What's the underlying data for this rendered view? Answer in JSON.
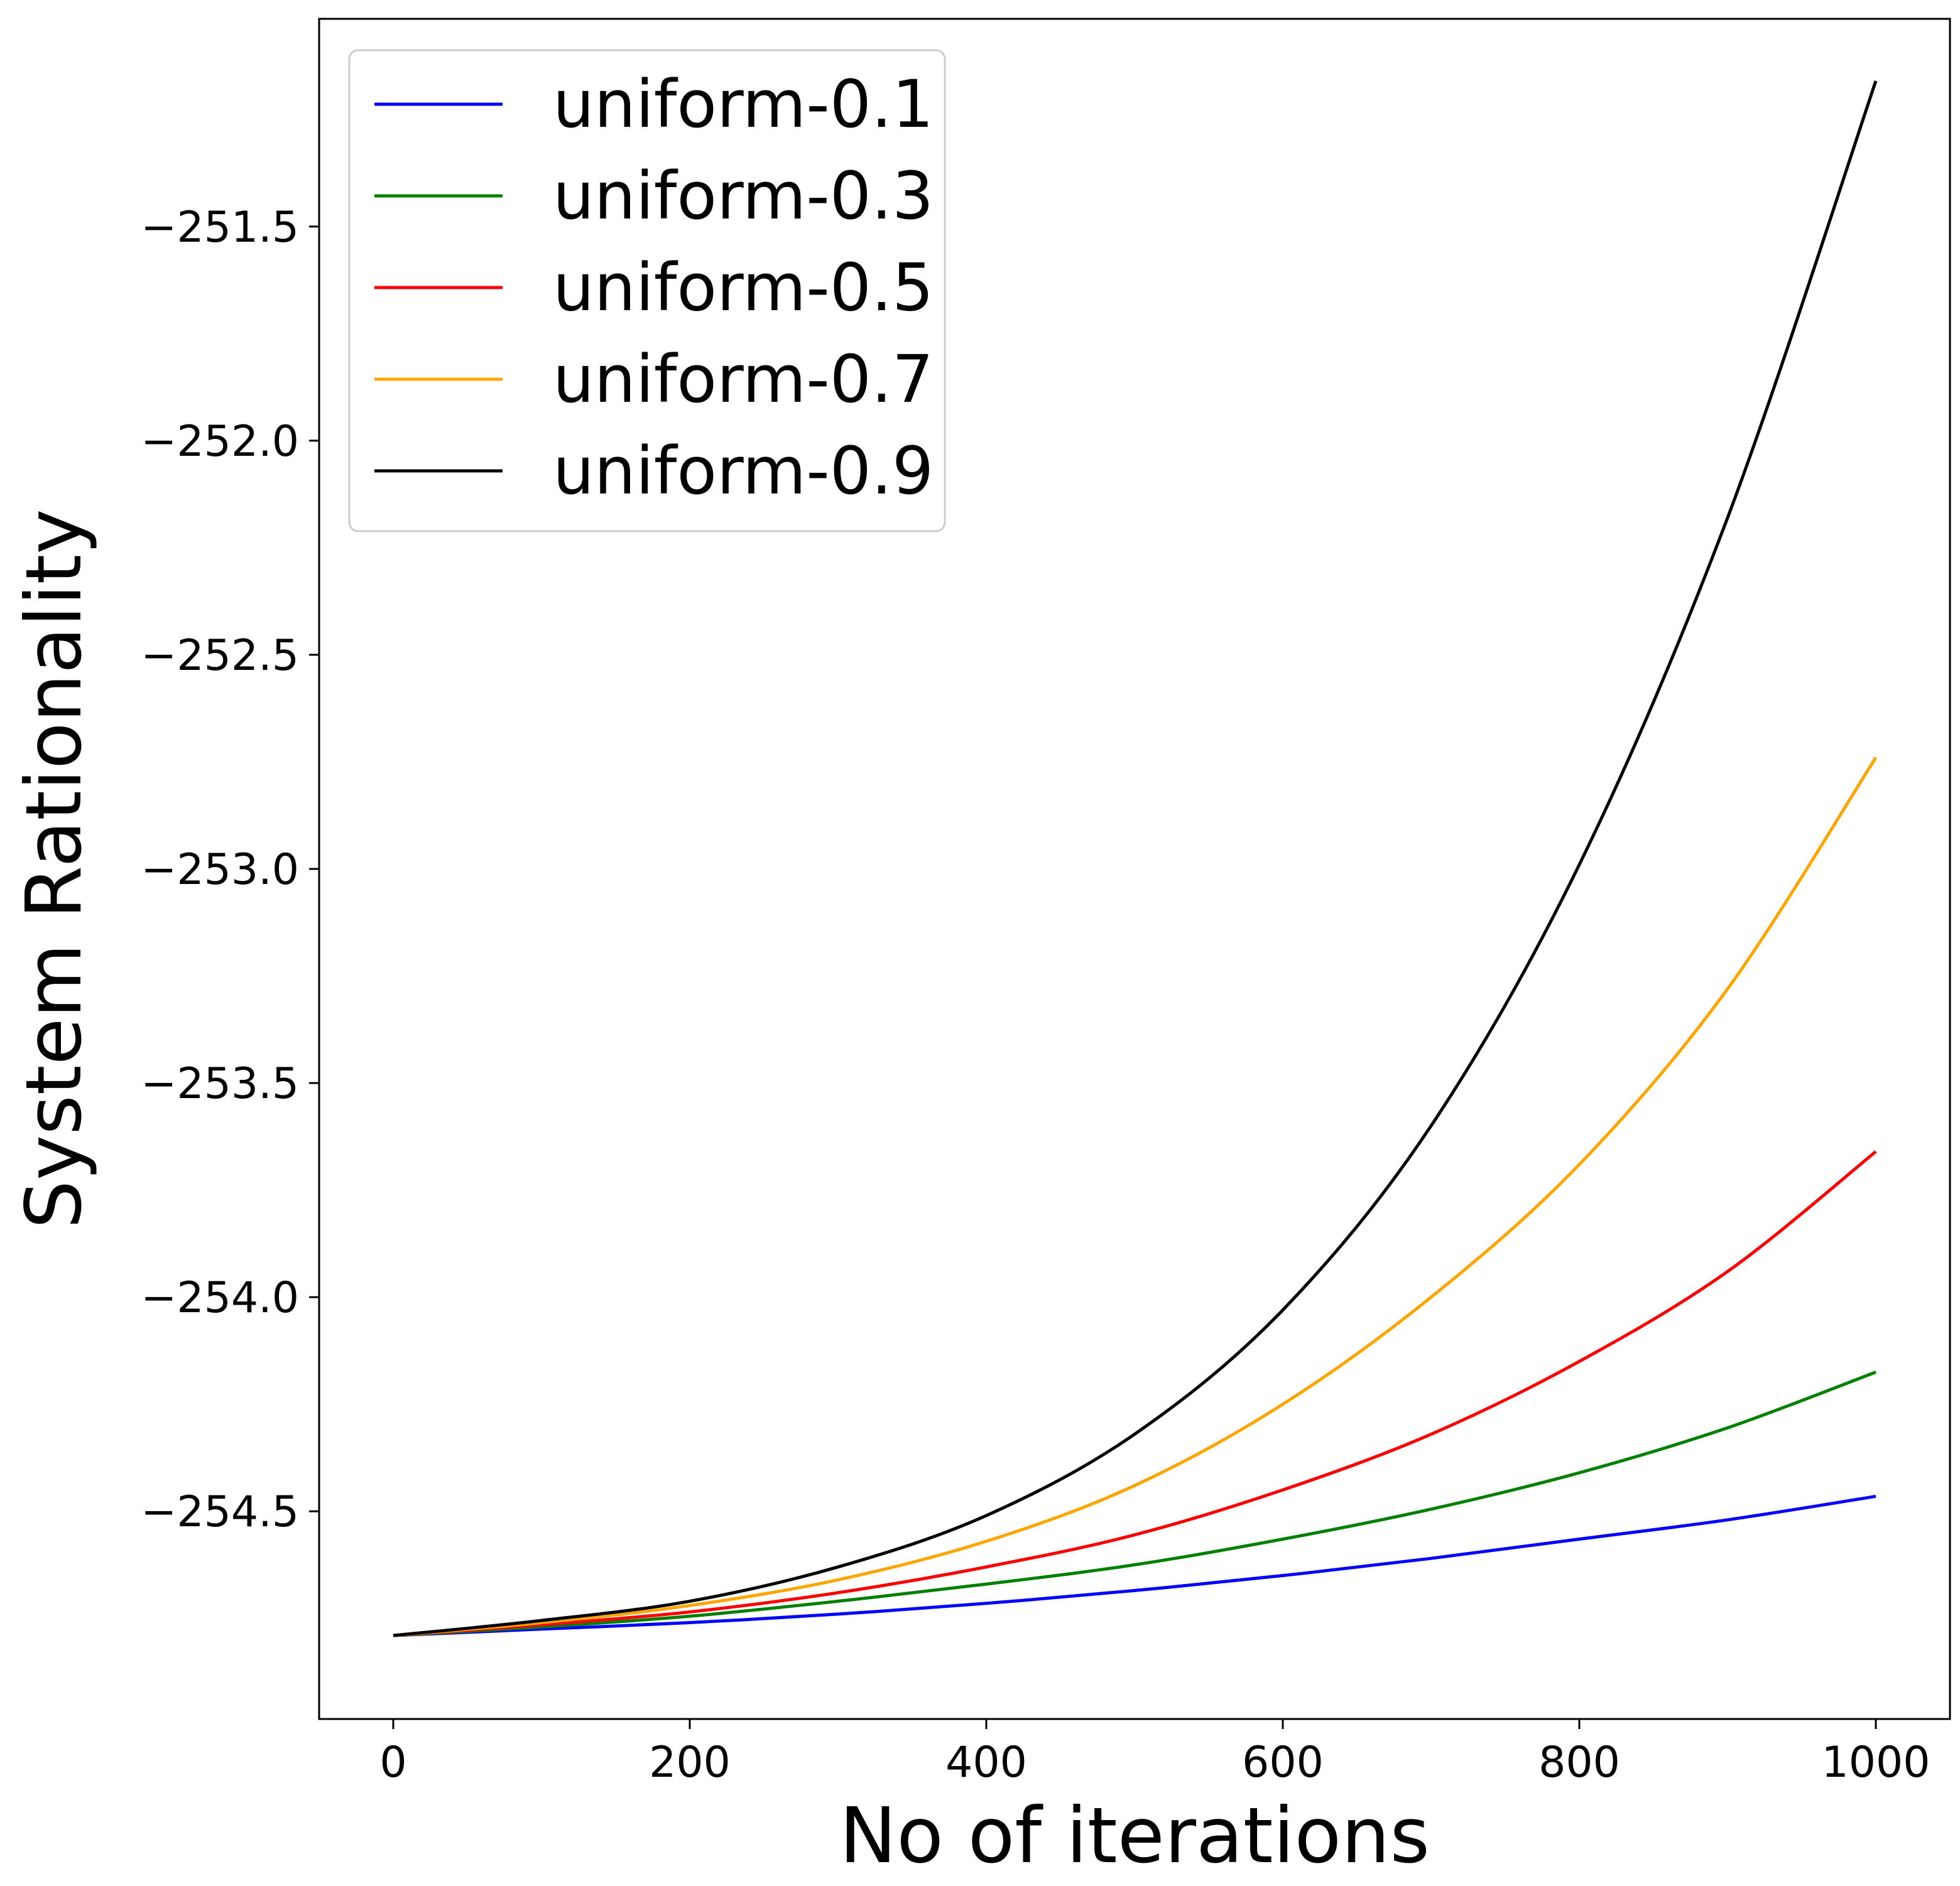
{
  "chart_data": {
    "type": "line",
    "title": "",
    "xlabel": "No of iterations",
    "ylabel": "System Rationality",
    "xlim": [
      -50,
      1050
    ],
    "ylim": [
      -254.985,
      -251.015
    ],
    "xticks": [
      0,
      200,
      400,
      600,
      800,
      1000
    ],
    "yticks": [
      -254.5,
      -254.0,
      -253.5,
      -253.0,
      -252.5,
      -252.0,
      -251.5
    ],
    "xtick_labels": [
      "0",
      "200",
      "400",
      "600",
      "800",
      "1000"
    ],
    "ytick_labels": [
      "−254.5",
      "−254.0",
      "−253.5",
      "−253.0",
      "−252.5",
      "−252.0",
      "−251.5"
    ],
    "grid": false,
    "legend_position": "top-left",
    "x": [
      0,
      100,
      200,
      300,
      400,
      500,
      600,
      700,
      800,
      900,
      1000
    ],
    "series": [
      {
        "name": "uniform-0.1",
        "color": "#0000ff",
        "values": [
          -254.79,
          -254.775,
          -254.76,
          -254.74,
          -254.715,
          -254.685,
          -254.65,
          -254.61,
          -254.565,
          -254.52,
          -254.465
        ]
      },
      {
        "name": "uniform-0.3",
        "color": "#008000",
        "values": [
          -254.79,
          -254.77,
          -254.745,
          -254.71,
          -254.67,
          -254.625,
          -254.565,
          -254.495,
          -254.41,
          -254.305,
          -254.175
        ]
      },
      {
        "name": "uniform-0.5",
        "color": "#ff0000",
        "values": [
          -254.79,
          -254.765,
          -254.735,
          -254.69,
          -254.63,
          -254.555,
          -254.45,
          -254.32,
          -254.15,
          -253.94,
          -253.66
        ]
      },
      {
        "name": "uniform-0.7",
        "color": "#ffa500",
        "values": [
          -254.79,
          -254.76,
          -254.72,
          -254.66,
          -254.57,
          -254.44,
          -254.25,
          -254.0,
          -253.69,
          -253.28,
          -252.74
        ]
      },
      {
        "name": "uniform-0.9",
        "color": "#000000",
        "values": [
          -254.79,
          -254.755,
          -254.71,
          -254.63,
          -254.51,
          -254.32,
          -254.03,
          -253.6,
          -252.99,
          -252.18,
          -251.16
        ]
      }
    ]
  }
}
